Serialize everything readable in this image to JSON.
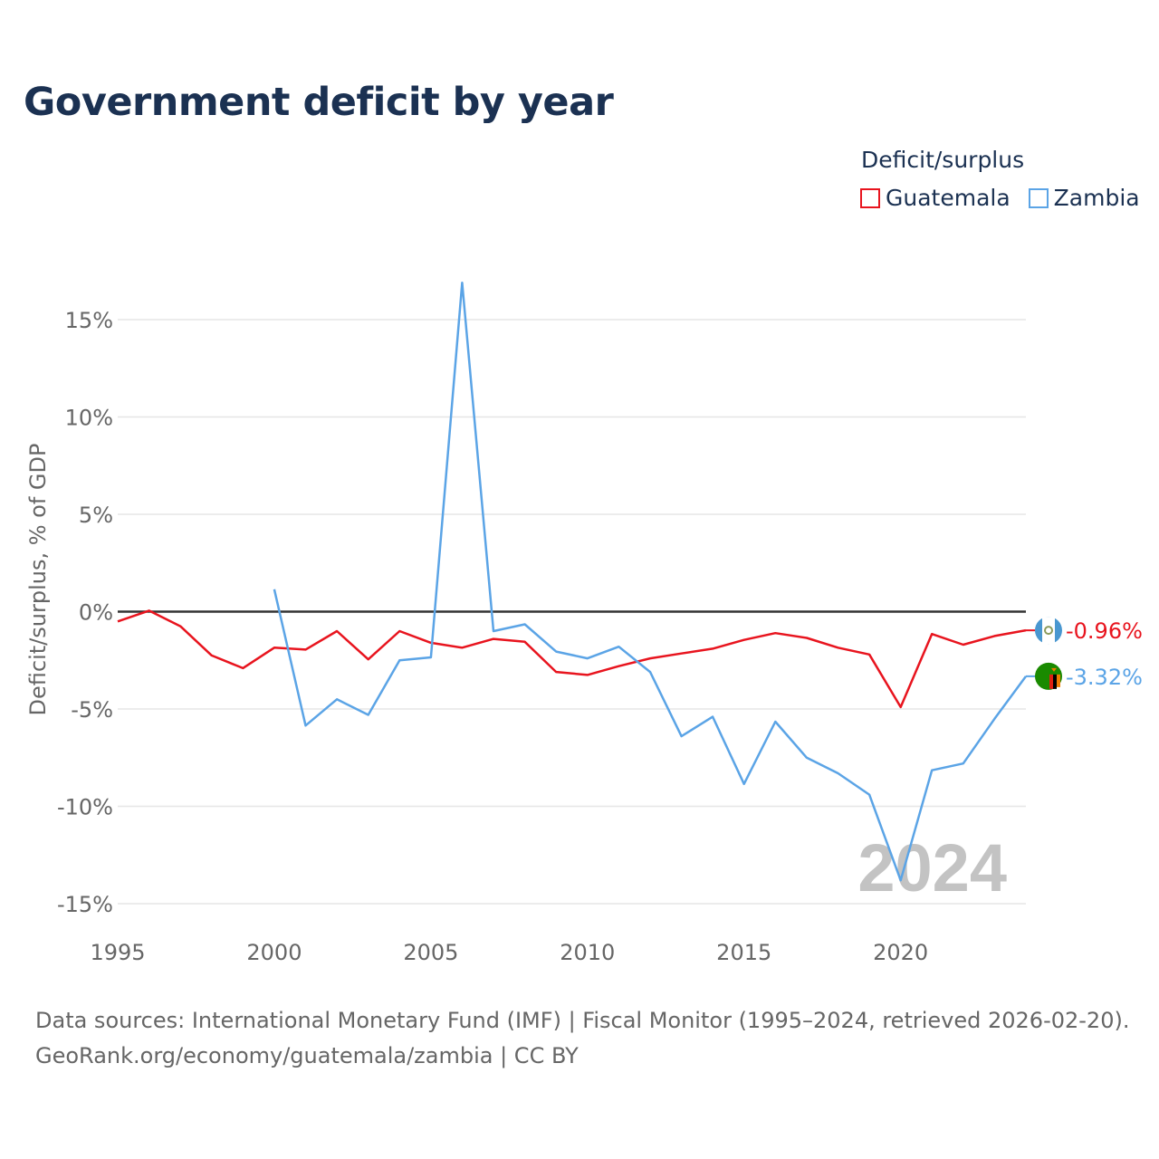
{
  "chart_data": {
    "type": "line",
    "title": "Government deficit by year",
    "legend_title": "Deficit/surplus",
    "ylabel": "Deficit/surplus, % of GDP",
    "xlabel": "",
    "x_range": [
      1995,
      2024
    ],
    "ylim": [
      -15,
      15
    ],
    "y_ticks": [
      {
        "value": 15,
        "label": "15%"
      },
      {
        "value": 10,
        "label": "10%"
      },
      {
        "value": 5,
        "label": "5%"
      },
      {
        "value": 0,
        "label": "0%"
      },
      {
        "value": -5,
        "label": "-5%"
      },
      {
        "value": -10,
        "label": "-10%"
      },
      {
        "value": -15,
        "label": "-15%"
      }
    ],
    "x_ticks": [
      {
        "value": 1995,
        "label": "1995"
      },
      {
        "value": 2000,
        "label": "2000"
      },
      {
        "value": 2005,
        "label": "2005"
      },
      {
        "value": 2010,
        "label": "2010"
      },
      {
        "value": 2015,
        "label": "2015"
      },
      {
        "value": 2020,
        "label": "2020"
      }
    ],
    "year_watermark": "2024",
    "series": [
      {
        "name": "Guatemala",
        "color": "#e8141e",
        "end_label": "-0.96%",
        "flag_icon": "guatemala-flag-icon",
        "points": [
          [
            1995,
            -0.5
          ],
          [
            1996,
            0.05
          ],
          [
            1997,
            -0.75
          ],
          [
            1998,
            -2.25
          ],
          [
            1999,
            -2.9
          ],
          [
            2000,
            -1.85
          ],
          [
            2001,
            -1.95
          ],
          [
            2002,
            -1.0
          ],
          [
            2003,
            -2.45
          ],
          [
            2004,
            -1.0
          ],
          [
            2005,
            -1.6
          ],
          [
            2006,
            -1.85
          ],
          [
            2007,
            -1.4
          ],
          [
            2008,
            -1.55
          ],
          [
            2009,
            -3.1
          ],
          [
            2010,
            -3.25
          ],
          [
            2011,
            -2.8
          ],
          [
            2012,
            -2.4
          ],
          [
            2013,
            -2.15
          ],
          [
            2014,
            -1.9
          ],
          [
            2015,
            -1.45
          ],
          [
            2016,
            -1.1
          ],
          [
            2017,
            -1.35
          ],
          [
            2018,
            -1.85
          ],
          [
            2019,
            -2.2
          ],
          [
            2020,
            -4.9
          ],
          [
            2021,
            -1.15
          ],
          [
            2022,
            -1.7
          ],
          [
            2023,
            -1.25
          ],
          [
            2024,
            -0.96
          ]
        ]
      },
      {
        "name": "Zambia",
        "color": "#5ba4e6",
        "end_label": "-3.32%",
        "flag_icon": "zambia-flag-icon",
        "points": [
          [
            2000,
            1.15
          ],
          [
            2001,
            -5.85
          ],
          [
            2002,
            -4.5
          ],
          [
            2003,
            -5.3
          ],
          [
            2004,
            -2.5
          ],
          [
            2005,
            -2.35
          ],
          [
            2006,
            16.9
          ],
          [
            2007,
            -1.0
          ],
          [
            2008,
            -0.65
          ],
          [
            2009,
            -2.05
          ],
          [
            2010,
            -2.4
          ],
          [
            2011,
            -1.8
          ],
          [
            2012,
            -3.1
          ],
          [
            2013,
            -6.4
          ],
          [
            2014,
            -5.4
          ],
          [
            2015,
            -8.85
          ],
          [
            2016,
            -5.65
          ],
          [
            2017,
            -7.5
          ],
          [
            2018,
            -8.3
          ],
          [
            2019,
            -9.4
          ],
          [
            2020,
            -13.8
          ],
          [
            2021,
            -8.15
          ],
          [
            2022,
            -7.8
          ],
          [
            2023,
            -5.5
          ],
          [
            2024,
            -3.32
          ]
        ]
      }
    ]
  },
  "sources": {
    "line1": "Data sources: International Monetary Fund (IMF) | Fiscal Monitor (1995–2024, retrieved 2026-02-20).",
    "line2": "GeoRank.org/economy/guatemala/zambia | CC BY"
  }
}
